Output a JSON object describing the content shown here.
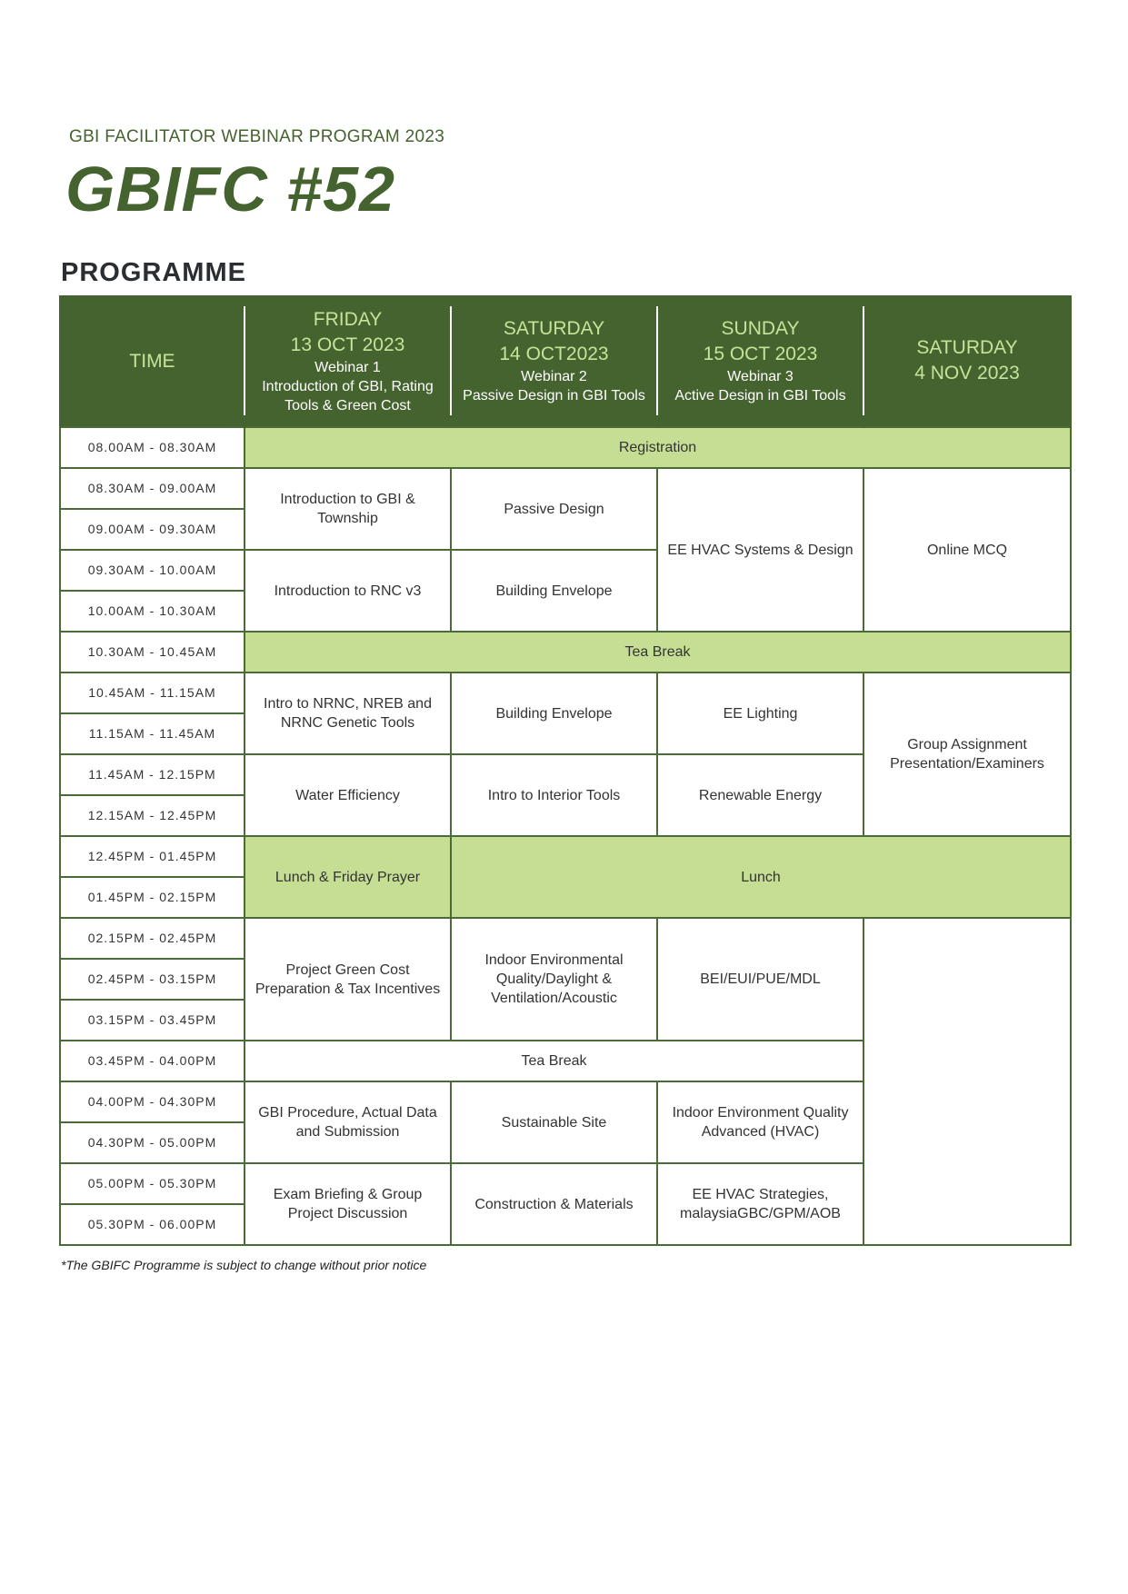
{
  "header": {
    "subtitle": "GBI FACILITATOR WEBINAR PROGRAM 2023",
    "title": "GBIFC #52",
    "section": "PROGRAMME"
  },
  "table": {
    "time_header": "TIME",
    "days": [
      {
        "day": "FRIDAY",
        "date": "13 OCT 2023",
        "webinar": "Webinar 1",
        "topic": "Introduction of GBI, Rating Tools & Green Cost"
      },
      {
        "day": "SATURDAY",
        "date": "14 OCT2023",
        "webinar": "Webinar 2",
        "topic": "Passive Design in GBI Tools"
      },
      {
        "day": "SUNDAY",
        "date": "15 OCT 2023",
        "webinar": "Webinar 3",
        "topic": "Active Design in GBI Tools"
      },
      {
        "day": "SATURDAY",
        "date": "4 NOV 2023"
      }
    ],
    "times": [
      "08.00AM - 08.30AM",
      "08.30AM - 09.00AM",
      "09.00AM - 09.30AM",
      "09.30AM - 10.00AM",
      "10.00AM - 10.30AM",
      "10.30AM - 10.45AM",
      "10.45AM - 11.15AM",
      "11.15AM - 11.45AM",
      "11.45AM - 12.15PM",
      "12.15AM - 12.45PM",
      "12.45PM - 01.45PM",
      "01.45PM - 02.15PM",
      "02.15PM - 02.45PM",
      "02.45PM - 03.15PM",
      "03.15PM - 03.45PM",
      "03.45PM - 04.00PM",
      "04.00PM - 04.30PM",
      "04.30PM - 05.00PM",
      "05.00PM - 05.30PM",
      "05.30PM - 06.00PM"
    ],
    "sessions": {
      "registration": "Registration",
      "fri_1": "Introduction to GBI & Township",
      "sat_1": "Passive Design",
      "sun_1": "EE HVAC Systems & Design",
      "nov_1": "Online MCQ",
      "fri_2": "Introduction to RNC v3",
      "sat_2": "Building Envelope",
      "tea_1": "Tea Break",
      "fri_3": "Intro to NRNC, NREB and NRNC Genetic Tools",
      "sat_3": "Building Envelope",
      "sun_3": "EE Lighting",
      "nov_2": "Group Assignment Presentation/Examiners",
      "fri_4": "Water Efficiency",
      "sat_4": "Intro to Interior Tools",
      "sun_4": "Renewable Energy",
      "fri_lunch": "Lunch & Friday Prayer",
      "lunch": "Lunch",
      "fri_5": "Project Green Cost Preparation & Tax Incentives",
      "sat_5": "Indoor Environmental Quality/Daylight & Ventilation/Acoustic",
      "sun_5": "BEI/EUI/PUE/MDL",
      "tea_2": "Tea Break",
      "fri_6": "GBI Procedure, Actual Data and Submission",
      "sat_6": "Sustainable Site",
      "sun_6": "Indoor Environment Quality Advanced (HVAC)",
      "fri_7": "Exam Briefing & Group Project Discussion",
      "sat_7": "Construction & Materials",
      "sun_7": "EE HVAC Strategies, malaysiaGBC/GPM/AOB"
    }
  },
  "footnote": "*The GBIFC Programme is subject to change without prior notice",
  "colors": {
    "dark_green": "#44632f",
    "light_green": "#c5de94",
    "header_text": "#c5e49a"
  }
}
